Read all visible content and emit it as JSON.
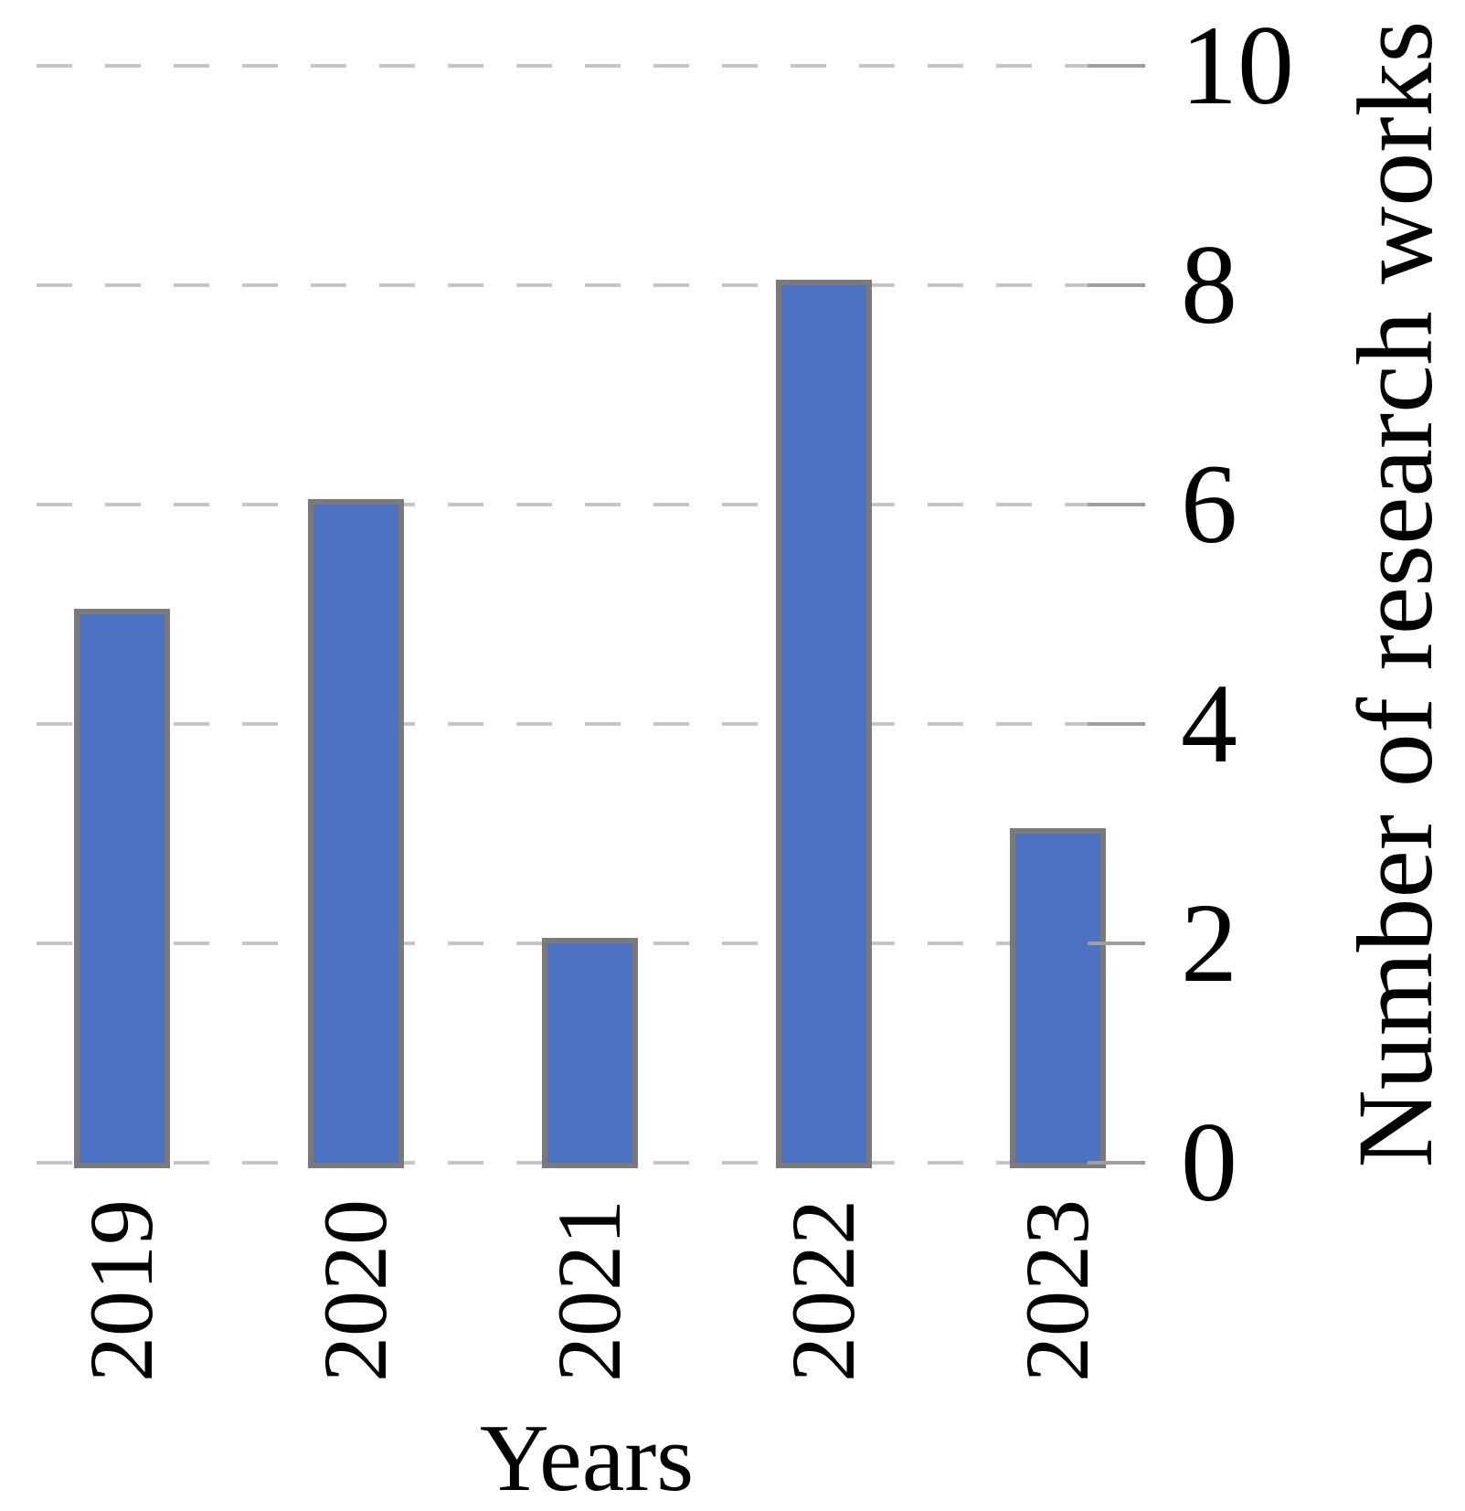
{
  "chart_data": {
    "type": "bar",
    "title": "",
    "categories": [
      "2019",
      "2020",
      "2021",
      "2022",
      "2023"
    ],
    "values": [
      5,
      6,
      2,
      8,
      3
    ],
    "xlabel": "Years",
    "ylabel": "Number of research works",
    "yticks": [
      0,
      2,
      4,
      6,
      8,
      10
    ],
    "ylim": [
      0,
      10
    ],
    "y_axis_side": "right",
    "x_tick_rotation_deg": 90,
    "grid": "horizontal-dashed",
    "legend": "none",
    "colors": {
      "bar_fill": "#4d71c3",
      "bar_border": "#7a7a7a",
      "gridline": "#c6c6c6",
      "tick": "#9e9e9e",
      "text": "#000000",
      "background": "#ffffff"
    }
  }
}
